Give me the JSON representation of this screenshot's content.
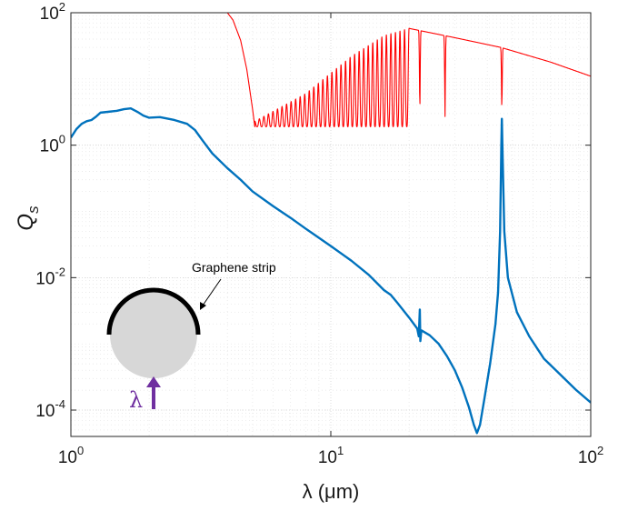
{
  "chart_data": {
    "type": "line",
    "xlabel": "λ (μm)",
    "ylabel": "Q",
    "ylabel_subscript": "s",
    "xscale": "log",
    "yscale": "log",
    "xlim": [
      1,
      100
    ],
    "ylim": [
      4e-05,
      100
    ],
    "grid": true,
    "x_ticks": [
      {
        "base": "10",
        "exp": "0",
        "value": 1
      },
      {
        "base": "10",
        "exp": "1",
        "value": 10
      },
      {
        "base": "10",
        "exp": "2",
        "value": 100
      }
    ],
    "y_ticks": [
      {
        "base": "10",
        "exp": "-4",
        "value": 0.0001
      },
      {
        "base": "10",
        "exp": "-2",
        "value": 0.01
      },
      {
        "base": "10",
        "exp": "0",
        "value": 1
      },
      {
        "base": "10",
        "exp": "2",
        "value": 100
      }
    ],
    "annotation": "Graphene strip",
    "inset_lambda": "λ",
    "series": [
      {
        "color": "#0072BD",
        "points": [
          [
            1.0,
            1.3
          ],
          [
            1.05,
            1.75
          ],
          [
            1.1,
            2.1
          ],
          [
            1.15,
            2.3
          ],
          [
            1.2,
            2.4
          ],
          [
            1.25,
            2.7
          ],
          [
            1.3,
            3.1
          ],
          [
            1.4,
            3.2
          ],
          [
            1.5,
            3.3
          ],
          [
            1.6,
            3.5
          ],
          [
            1.7,
            3.6
          ],
          [
            1.8,
            3.2
          ],
          [
            1.9,
            2.8
          ],
          [
            2.0,
            2.6
          ],
          [
            2.2,
            2.65
          ],
          [
            2.5,
            2.4
          ],
          [
            2.8,
            2.1
          ],
          [
            3.0,
            1.7
          ],
          [
            3.2,
            1.2
          ],
          [
            3.5,
            0.75
          ],
          [
            4.0,
            0.45
          ],
          [
            4.5,
            0.3
          ],
          [
            5.0,
            0.2
          ],
          [
            6.0,
            0.12
          ],
          [
            7.0,
            0.08
          ],
          [
            8.0,
            0.055
          ],
          [
            10.0,
            0.03
          ],
          [
            12.0,
            0.018
          ],
          [
            14.0,
            0.011
          ],
          [
            16.0,
            0.0065
          ],
          [
            17.0,
            0.0055
          ],
          [
            18.0,
            0.0042
          ],
          [
            20.0,
            0.0025
          ],
          [
            21.5,
            0.0017
          ],
          [
            21.8,
            0.0013
          ],
          [
            22.0,
            0.0033
          ],
          [
            22.1,
            0.0011
          ],
          [
            22.3,
            0.0016
          ],
          [
            24.0,
            0.00135
          ],
          [
            26.0,
            0.001
          ],
          [
            28.0,
            0.00065
          ],
          [
            30.0,
            0.0004
          ],
          [
            32.0,
            0.00022
          ],
          [
            34.0,
            0.00011
          ],
          [
            35.5,
            6e-05
          ],
          [
            36.5,
            4.5e-05
          ],
          [
            37.5,
            6e-05
          ],
          [
            39.0,
            0.00015
          ],
          [
            41.0,
            0.0005
          ],
          [
            43.0,
            0.002
          ],
          [
            44.0,
            0.006
          ],
          [
            44.8,
            0.05
          ],
          [
            45.3,
            1.0
          ],
          [
            45.5,
            2.5
          ],
          [
            45.8,
            0.7
          ],
          [
            46.5,
            0.05
          ],
          [
            48.0,
            0.01
          ],
          [
            52.0,
            0.003
          ],
          [
            58.0,
            0.0013
          ],
          [
            66.0,
            0.0006
          ],
          [
            76.0,
            0.00035
          ],
          [
            88.0,
            0.0002
          ],
          [
            100.0,
            0.00013
          ]
        ]
      },
      {
        "color": "#FF0000",
        "x_start": 4.0,
        "envelope_points": [
          [
            4.0,
            100
          ],
          [
            4.2,
            78
          ],
          [
            4.5,
            38
          ],
          [
            4.75,
            14
          ],
          [
            5.0,
            3.5
          ],
          [
            5.1,
            1.9
          ],
          [
            20.0,
            1.6
          ]
        ],
        "oscillation": {
          "x_range": [
            5.1,
            20.0
          ],
          "upper_envelope": [
            [
              5.1,
              2.3
            ],
            [
              8.0,
              6.0
            ],
            [
              12.0,
              22.0
            ],
            [
              16.0,
              45.0
            ],
            [
              20.0,
              58.0
            ]
          ],
          "lower": 1.9,
          "cycles": 34
        },
        "tail_points": [
          [
            20.0,
            58.0
          ],
          [
            30.0,
            42.0
          ],
          [
            45.0,
            30.0
          ],
          [
            70.0,
            18.0
          ],
          [
            100.0,
            11.0
          ]
        ],
        "resonance_dips": [
          {
            "x": 22.0,
            "min": 2.0
          },
          {
            "x": 27.5,
            "min": 2.4
          },
          {
            "x": 45.5,
            "min": 2.4
          }
        ]
      }
    ]
  }
}
